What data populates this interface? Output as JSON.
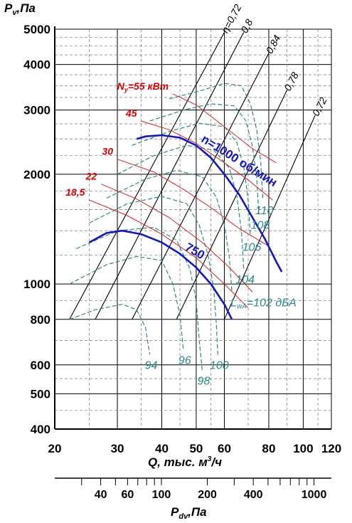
{
  "chart_data": {
    "type": "line",
    "title": "",
    "y_axis_label": "P",
    "y_axis_label_sub": "v",
    "y_axis_label_unit": ",Па",
    "x_axis_label": "Q, тыс. м",
    "x_axis_label_sup": "3",
    "x_axis_label_unit": "/ч",
    "x2_axis_label": "P",
    "x2_axis_label_sub": "dv",
    "x2_axis_label_unit": ",Па",
    "x_scale": "log",
    "y_scale": "log",
    "x2_scale": "log",
    "xlim": [
      20,
      120
    ],
    "ylim": [
      400,
      5000
    ],
    "x2lim": [
      20,
      1300
    ],
    "x_ticks": [
      "20",
      "30",
      "40",
      "50",
      "60",
      "80",
      "100",
      "120"
    ],
    "y_ticks": [
      "400",
      "500",
      "600",
      "800",
      "1000",
      "2000",
      "3000",
      "4000",
      "5000"
    ],
    "x2_ticks": [
      "40",
      "60",
      "100",
      "200",
      "400",
      "1000"
    ],
    "speed_curves": [
      {
        "label": "n=1000 об/мин",
        "color": "#1515c8",
        "points": [
          [
            34,
            2500
          ],
          [
            36,
            2540
          ],
          [
            40,
            2560
          ],
          [
            45,
            2520
          ],
          [
            50,
            2400
          ],
          [
            55,
            2220
          ],
          [
            60,
            2000
          ],
          [
            66,
            1760
          ],
          [
            72,
            1520
          ],
          [
            78,
            1330
          ],
          [
            84,
            1150
          ],
          [
            87,
            1080
          ]
        ]
      },
      {
        "label": "750",
        "color": "#1515c8",
        "points": [
          [
            25,
            1300
          ],
          [
            28,
            1380
          ],
          [
            31,
            1400
          ],
          [
            35,
            1370
          ],
          [
            40,
            1300
          ],
          [
            45,
            1210
          ],
          [
            50,
            1110
          ],
          [
            55,
            1000
          ],
          [
            60,
            880
          ],
          [
            63,
            800
          ]
        ]
      }
    ],
    "power_curves": [
      {
        "label": "N",
        "label_sub": "у",
        "label_rest": "=55 кВт",
        "points": [
          [
            43,
            3320
          ],
          [
            50,
            3100
          ],
          [
            60,
            2700
          ],
          [
            72,
            2350
          ],
          [
            84,
            2150
          ]
        ]
      },
      {
        "label": "45",
        "points": [
          [
            35,
            2800
          ],
          [
            42,
            2650
          ],
          [
            50,
            2430
          ],
          [
            60,
            2150
          ],
          [
            70,
            1930
          ],
          [
            82,
            1700
          ]
        ]
      },
      {
        "label": "30",
        "points": [
          [
            30,
            2200
          ],
          [
            38,
            2030
          ],
          [
            46,
            1820
          ],
          [
            55,
            1620
          ],
          [
            66,
            1420
          ],
          [
            80,
            1270
          ]
        ]
      },
      {
        "label": "22",
        "points": [
          [
            27,
            1880
          ],
          [
            34,
            1710
          ],
          [
            42,
            1520
          ],
          [
            52,
            1300
          ],
          [
            62,
            1110
          ],
          [
            72,
            950
          ]
        ]
      },
      {
        "label": "18,5",
        "points": [
          [
            25,
            1700
          ],
          [
            32,
            1540
          ],
          [
            40,
            1370
          ],
          [
            50,
            1180
          ],
          [
            60,
            1000
          ],
          [
            70,
            860
          ]
        ]
      }
    ],
    "efficiency_lines": [
      {
        "label": "η=0,72",
        "points": [
          [
            22,
            800
          ],
          [
            60,
            4900
          ]
        ]
      },
      {
        "label": "0,8",
        "points": [
          [
            26,
            800
          ],
          [
            68,
            4900
          ]
        ]
      },
      {
        "label": "0,84",
        "points": [
          [
            33,
            800
          ],
          [
            80,
            4300
          ]
        ]
      },
      {
        "label": "0,78",
        "points": [
          [
            44,
            800
          ],
          [
            90,
            3400
          ]
        ]
      },
      {
        "label": "0,72",
        "points": [
          [
            60,
            800
          ],
          [
            108,
            2900
          ]
        ]
      }
    ],
    "noise_curves": [
      {
        "label": "94",
        "points": [
          [
            22,
            800
          ],
          [
            26,
            850
          ],
          [
            31,
            880
          ],
          [
            34,
            850
          ],
          [
            36,
            760
          ],
          [
            37,
            640
          ]
        ]
      },
      {
        "label": "96",
        "points": [
          [
            22,
            1000
          ],
          [
            28,
            1130
          ],
          [
            34,
            1190
          ],
          [
            40,
            1160
          ],
          [
            43,
            1000
          ],
          [
            45,
            820
          ],
          [
            46,
            660
          ]
        ]
      },
      {
        "label": "98",
        "points": [
          [
            23,
            1250
          ],
          [
            30,
            1400
          ],
          [
            38,
            1430
          ],
          [
            44,
            1320
          ],
          [
            48,
            1100
          ],
          [
            50,
            900
          ],
          [
            51,
            700
          ],
          [
            52,
            580
          ]
        ]
      },
      {
        "label": "100",
        "points": [
          [
            25,
            1470
          ],
          [
            32,
            1660
          ],
          [
            40,
            1740
          ],
          [
            47,
            1660
          ],
          [
            51,
            1450
          ],
          [
            54,
            1200
          ],
          [
            56,
            970
          ],
          [
            57,
            770
          ],
          [
            57.5,
            640
          ]
        ]
      },
      {
        "label": "102",
        "label_prefix": "L",
        "label_prefix_sub": "wA",
        "label_prefix_rest": "=",
        "label_unit": " дБА",
        "points": [
          [
            28,
            1720
          ],
          [
            36,
            1940
          ],
          [
            44,
            2050
          ],
          [
            52,
            1970
          ],
          [
            57,
            1730
          ],
          [
            60,
            1450
          ],
          [
            62,
            1180
          ],
          [
            63,
            950
          ]
        ]
      },
      {
        "label": "104",
        "points": [
          [
            30,
            2000
          ],
          [
            38,
            2250
          ],
          [
            47,
            2400
          ],
          [
            56,
            2330
          ],
          [
            62,
            2080
          ],
          [
            65,
            1750
          ],
          [
            67,
            1400
          ],
          [
            68,
            1100
          ]
        ]
      },
      {
        "label": "106",
        "points": [
          [
            33,
            2400
          ],
          [
            42,
            2620
          ],
          [
            51,
            2760
          ],
          [
            60,
            2700
          ],
          [
            65,
            2450
          ],
          [
            68,
            2100
          ],
          [
            70,
            1700
          ],
          [
            71,
            1350
          ]
        ]
      },
      {
        "label": "108",
        "points": [
          [
            37,
            2800
          ],
          [
            46,
            3000
          ],
          [
            55,
            3120
          ],
          [
            64,
            3080
          ],
          [
            69,
            2800
          ],
          [
            72,
            2380
          ],
          [
            74,
            1950
          ],
          [
            75,
            1550
          ]
        ]
      },
      {
        "label": "110",
        "points": [
          [
            42,
            3220
          ],
          [
            51,
            3380
          ],
          [
            60,
            3550
          ],
          [
            67,
            3500
          ],
          [
            71,
            3120
          ],
          [
            74,
            2650
          ],
          [
            76,
            2150
          ],
          [
            77,
            1700
          ]
        ]
      }
    ]
  }
}
